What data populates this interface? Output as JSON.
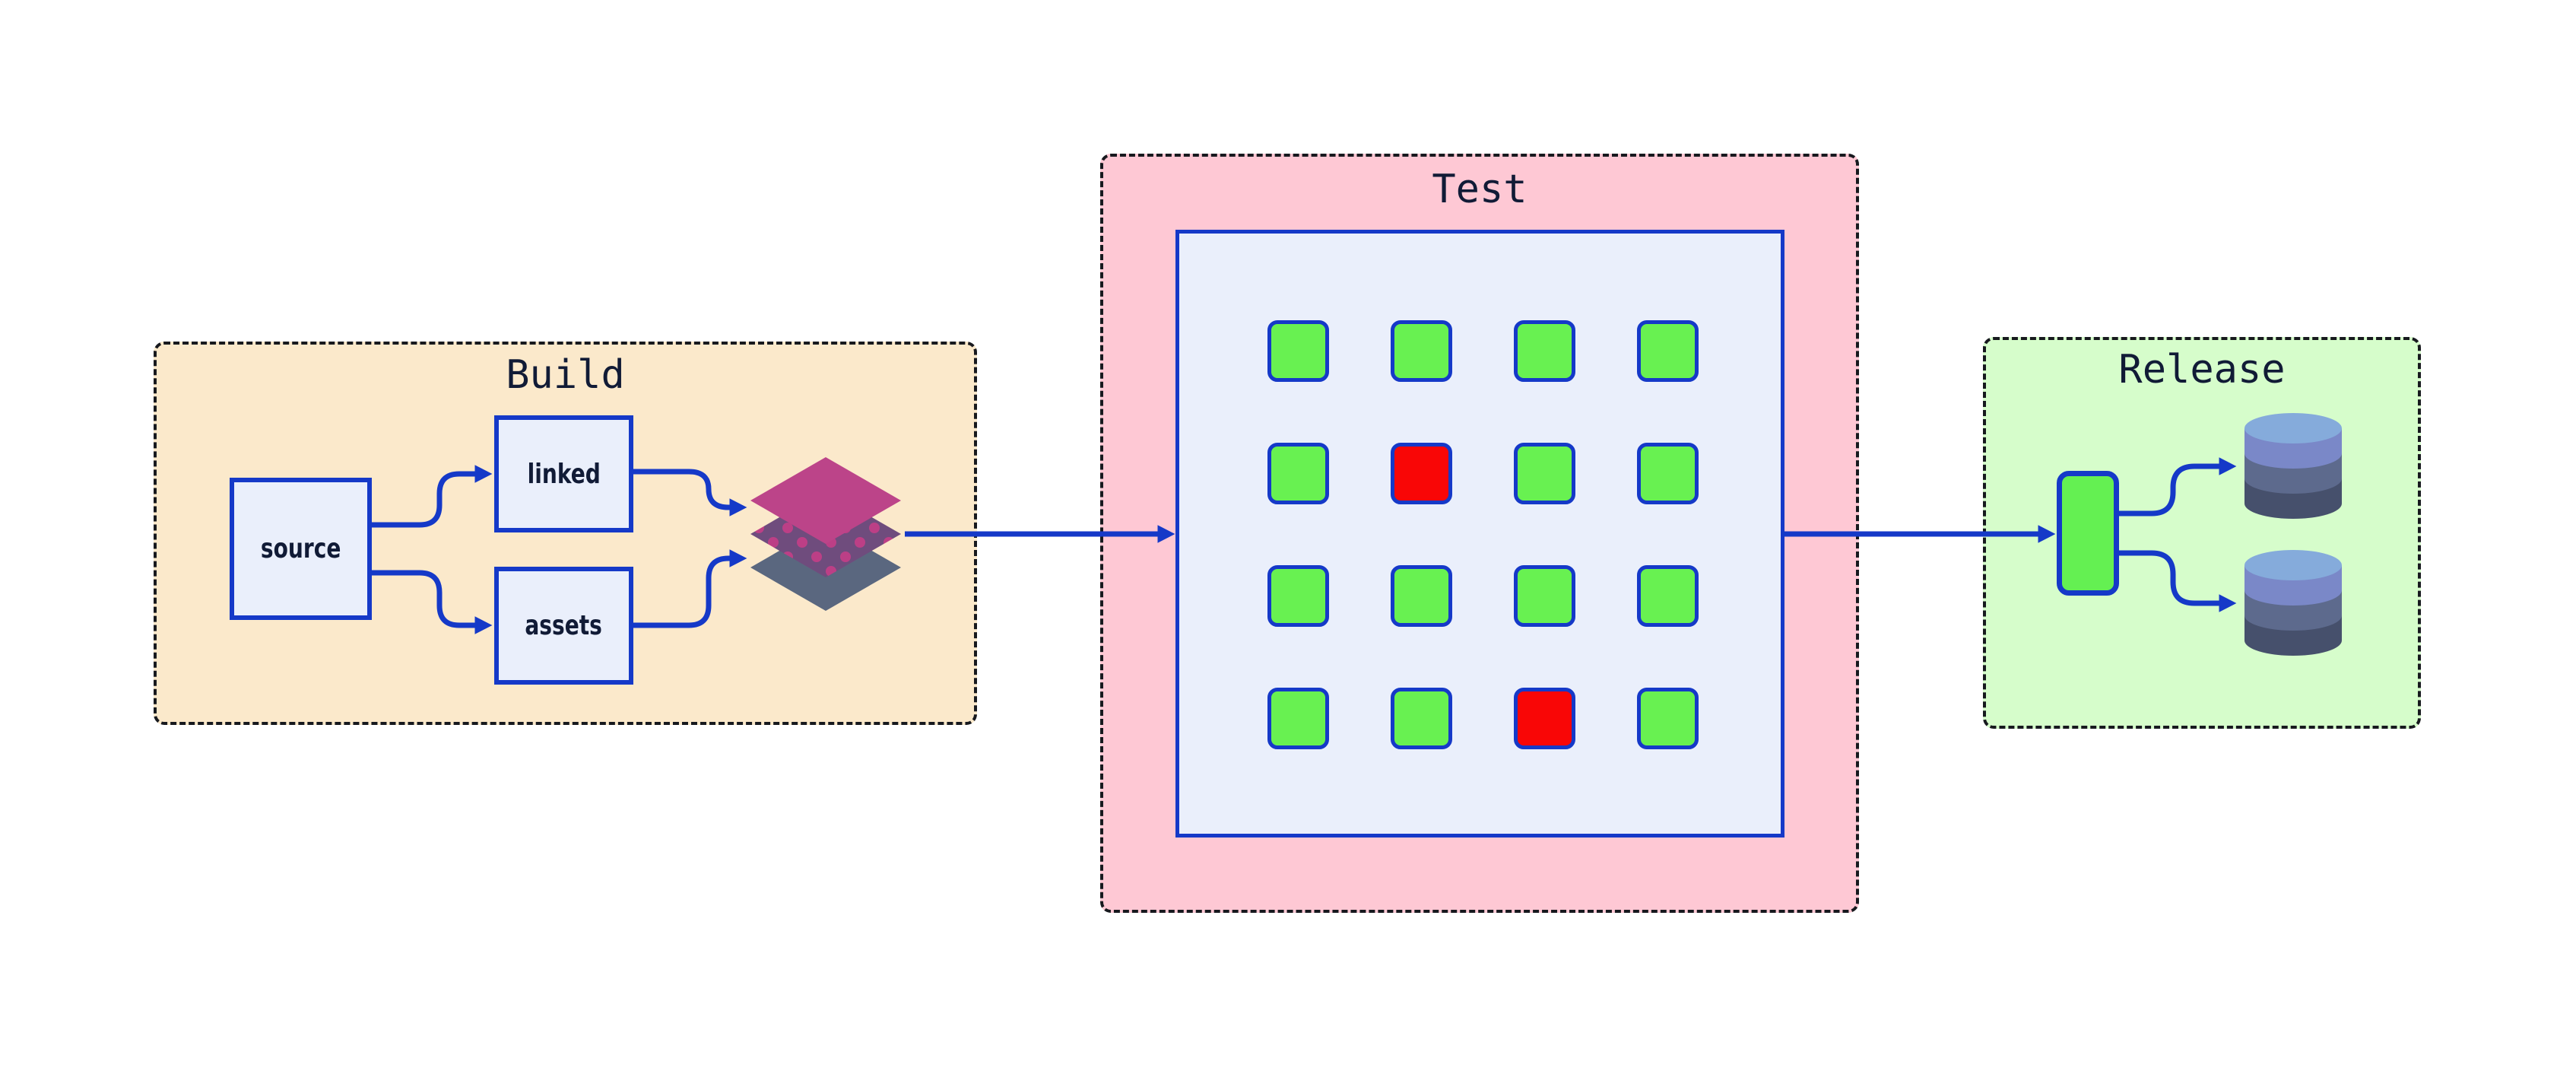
{
  "diagram": {
    "type": "pipeline-flow",
    "stages": [
      "Build",
      "Test",
      "Release"
    ]
  },
  "build": {
    "title": "Build",
    "nodes": [
      {
        "id": "source",
        "label": "source"
      },
      {
        "id": "linked",
        "label": "linked"
      },
      {
        "id": "assets",
        "label": "assets"
      }
    ],
    "icon": "layers-stack-icon"
  },
  "test": {
    "title": "Test",
    "grid": {
      "rows": 4,
      "cols": 4,
      "statuses": [
        [
          "pass",
          "pass",
          "pass",
          "pass"
        ],
        [
          "pass",
          "fail",
          "pass",
          "pass"
        ],
        [
          "pass",
          "pass",
          "pass",
          "pass"
        ],
        [
          "pass",
          "pass",
          "fail",
          "pass"
        ]
      ]
    }
  },
  "release": {
    "title": "Release",
    "artifact": "release-artifact",
    "database_count": 2,
    "icon": "database-icon"
  },
  "connections": [
    {
      "from": "source",
      "to": "linked"
    },
    {
      "from": "source",
      "to": "assets"
    },
    {
      "from": "linked",
      "to": "layers-stack"
    },
    {
      "from": "assets",
      "to": "layers-stack"
    },
    {
      "from": "layers-stack",
      "to": "test-matrix"
    },
    {
      "from": "test-matrix",
      "to": "release-artifact"
    },
    {
      "from": "release-artifact",
      "to": "database-1"
    },
    {
      "from": "release-artifact",
      "to": "database-2"
    }
  ],
  "colors": {
    "accent_blue": "#1539c8",
    "border_black": "#17191e",
    "text_navy": "#111b36",
    "node_fill": "#eaeffb",
    "build_bg": "#fbe9cb",
    "test_bg": "#fec8d4",
    "release_bg": "#d6fdcb",
    "pass_green": "#68f151",
    "fail_red": "#f90606",
    "artifact_green": "#64f052",
    "layer_magenta": "#bc4489",
    "layer_dot_base": "#6f4c7d",
    "layer_dot": "#bc3f86",
    "layer_slate": "#5a677f",
    "db_top": "#85abdb",
    "db_band_1": "#7a88c8",
    "db_band_2": "#5d6a8d",
    "db_band_3": "#46506c"
  }
}
